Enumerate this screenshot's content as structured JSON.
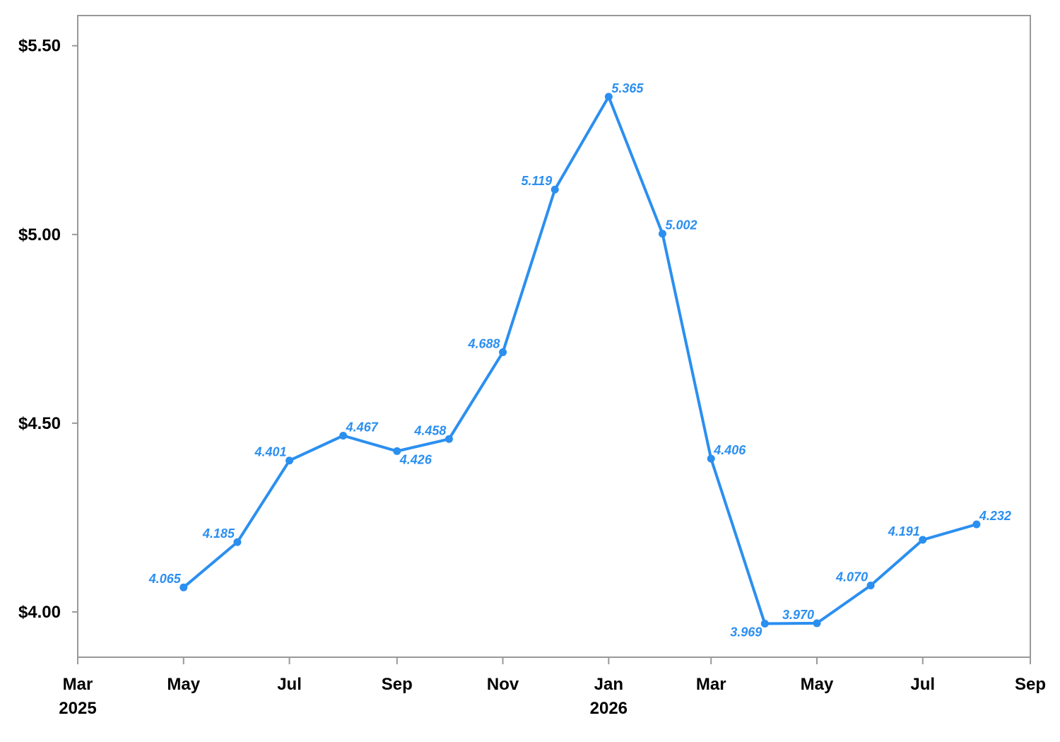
{
  "chart_data": {
    "type": "line",
    "title": "",
    "xlabel": "",
    "ylabel": "",
    "x_range": [
      "2025-03-01",
      "2026-09-01"
    ],
    "ylim": [
      3.88,
      5.58
    ],
    "grid": false,
    "legend": "none",
    "series_color": "#2b8ff0",
    "axis_color": "#999999",
    "y_ticks": [
      {
        "value": 4.0,
        "label": "$4.00"
      },
      {
        "value": 4.5,
        "label": "$4.50"
      },
      {
        "value": 5.0,
        "label": "$5.00"
      },
      {
        "value": 5.5,
        "label": "$5.50"
      }
    ],
    "x_ticks": [
      {
        "date": "2025-03-01",
        "label": "Mar",
        "year": "2025"
      },
      {
        "date": "2025-05-01",
        "label": "May",
        "year": ""
      },
      {
        "date": "2025-07-01",
        "label": "Jul",
        "year": ""
      },
      {
        "date": "2025-09-01",
        "label": "Sep",
        "year": ""
      },
      {
        "date": "2025-11-01",
        "label": "Nov",
        "year": ""
      },
      {
        "date": "2026-01-01",
        "label": "Jan",
        "year": "2026"
      },
      {
        "date": "2026-03-01",
        "label": "Mar",
        "year": ""
      },
      {
        "date": "2026-05-01",
        "label": "May",
        "year": ""
      },
      {
        "date": "2026-07-01",
        "label": "Jul",
        "year": ""
      },
      {
        "date": "2026-09-01",
        "label": "Sep",
        "year": ""
      }
    ],
    "series": [
      {
        "points": [
          {
            "date": "2025-05-01",
            "value": 4.065,
            "label": "4.065",
            "label_pos": "upper-left"
          },
          {
            "date": "2025-06-01",
            "value": 4.185,
            "label": "4.185",
            "label_pos": "upper-left"
          },
          {
            "date": "2025-07-01",
            "value": 4.401,
            "label": "4.401",
            "label_pos": "upper-left"
          },
          {
            "date": "2025-08-01",
            "value": 4.467,
            "label": "4.467",
            "label_pos": "upper-right"
          },
          {
            "date": "2025-09-01",
            "value": 4.426,
            "label": "4.426",
            "label_pos": "lower-right"
          },
          {
            "date": "2025-10-01",
            "value": 4.458,
            "label": "4.458",
            "label_pos": "upper-left"
          },
          {
            "date": "2025-11-01",
            "value": 4.688,
            "label": "4.688",
            "label_pos": "upper-left"
          },
          {
            "date": "2025-12-01",
            "value": 5.119,
            "label": "5.119",
            "label_pos": "upper-left"
          },
          {
            "date": "2026-01-01",
            "value": 5.365,
            "label": "5.365",
            "label_pos": "upper-right"
          },
          {
            "date": "2026-02-01",
            "value": 5.002,
            "label": "5.002",
            "label_pos": "upper-right"
          },
          {
            "date": "2026-03-01",
            "value": 4.406,
            "label": "4.406",
            "label_pos": "upper-right"
          },
          {
            "date": "2026-04-01",
            "value": 3.969,
            "label": "3.969",
            "label_pos": "lower-left"
          },
          {
            "date": "2026-05-01",
            "value": 3.97,
            "label": "3.970",
            "label_pos": "upper-left"
          },
          {
            "date": "2026-06-01",
            "value": 4.07,
            "label": "4.070",
            "label_pos": "upper-left"
          },
          {
            "date": "2026-07-01",
            "value": 4.191,
            "label": "4.191",
            "label_pos": "upper-left"
          },
          {
            "date": "2026-08-01",
            "value": 4.232,
            "label": "4.232",
            "label_pos": "upper-right"
          }
        ]
      }
    ]
  }
}
